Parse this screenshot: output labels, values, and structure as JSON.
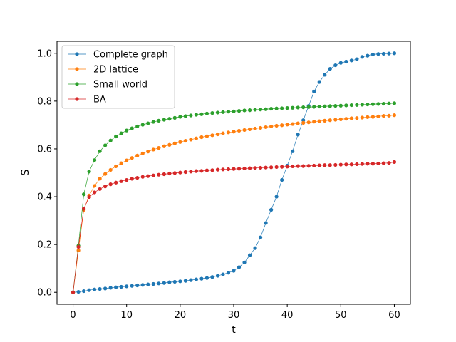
{
  "chart_data": {
    "type": "line",
    "xlabel": "t",
    "ylabel": "S",
    "xlim": [
      -3,
      63
    ],
    "ylim": [
      -0.05,
      1.05
    ],
    "xticks": [
      0,
      10,
      20,
      30,
      40,
      50,
      60
    ],
    "yticks": [
      0.0,
      0.2,
      0.4,
      0.6,
      0.8,
      1.0
    ],
    "ytick_labels": [
      "0.0",
      "0.2",
      "0.4",
      "0.6",
      "0.8",
      "1.0"
    ],
    "grid": false,
    "legend_position": "top-left",
    "series": [
      {
        "name": "Complete graph",
        "color": "#1f77b4",
        "x": [
          0,
          1,
          2,
          3,
          4,
          5,
          6,
          7,
          8,
          9,
          10,
          11,
          12,
          13,
          14,
          15,
          16,
          17,
          18,
          19,
          20,
          21,
          22,
          23,
          24,
          25,
          26,
          27,
          28,
          29,
          30,
          31,
          32,
          33,
          34,
          35,
          36,
          37,
          38,
          39,
          40,
          41,
          42,
          43,
          44,
          45,
          46,
          47,
          48,
          49,
          50,
          51,
          52,
          53,
          54,
          55,
          56,
          57,
          58,
          59,
          60
        ],
        "y": [
          0.0,
          0.002,
          0.005,
          0.009,
          0.012,
          0.014,
          0.016,
          0.019,
          0.021,
          0.023,
          0.025,
          0.027,
          0.029,
          0.031,
          0.033,
          0.035,
          0.037,
          0.039,
          0.042,
          0.044,
          0.046,
          0.048,
          0.051,
          0.054,
          0.057,
          0.06,
          0.064,
          0.069,
          0.075,
          0.082,
          0.09,
          0.105,
          0.125,
          0.155,
          0.185,
          0.23,
          0.29,
          0.345,
          0.4,
          0.47,
          0.53,
          0.59,
          0.66,
          0.72,
          0.78,
          0.84,
          0.88,
          0.91,
          0.935,
          0.95,
          0.96,
          0.965,
          0.97,
          0.975,
          0.985,
          0.99,
          0.995,
          0.997,
          0.998,
          0.999,
          1.0
        ]
      },
      {
        "name": "2D lattice",
        "color": "#ff7f0e",
        "x": [
          0,
          1,
          2,
          3,
          4,
          5,
          6,
          7,
          8,
          9,
          10,
          11,
          12,
          13,
          14,
          15,
          16,
          17,
          18,
          19,
          20,
          21,
          22,
          23,
          24,
          25,
          26,
          27,
          28,
          29,
          30,
          31,
          32,
          33,
          34,
          35,
          36,
          37,
          38,
          39,
          40,
          41,
          42,
          43,
          44,
          45,
          46,
          47,
          48,
          49,
          50,
          51,
          52,
          53,
          54,
          55,
          56,
          57,
          58,
          59,
          60
        ],
        "y": [
          0.0,
          0.175,
          0.345,
          0.405,
          0.445,
          0.475,
          0.495,
          0.512,
          0.527,
          0.54,
          0.552,
          0.562,
          0.572,
          0.581,
          0.589,
          0.597,
          0.604,
          0.611,
          0.617,
          0.623,
          0.629,
          0.634,
          0.639,
          0.644,
          0.649,
          0.653,
          0.657,
          0.661,
          0.665,
          0.669,
          0.672,
          0.676,
          0.679,
          0.682,
          0.685,
          0.688,
          0.691,
          0.694,
          0.697,
          0.699,
          0.702,
          0.704,
          0.707,
          0.709,
          0.711,
          0.714,
          0.716,
          0.718,
          0.72,
          0.722,
          0.724,
          0.726,
          0.728,
          0.729,
          0.731,
          0.733,
          0.734,
          0.736,
          0.738,
          0.739,
          0.741
        ]
      },
      {
        "name": "Small world",
        "color": "#2ca02c",
        "x": [
          0,
          1,
          2,
          3,
          4,
          5,
          6,
          7,
          8,
          9,
          10,
          11,
          12,
          13,
          14,
          15,
          16,
          17,
          18,
          19,
          20,
          21,
          22,
          23,
          24,
          25,
          26,
          27,
          28,
          29,
          30,
          31,
          32,
          33,
          34,
          35,
          36,
          37,
          38,
          39,
          40,
          41,
          42,
          43,
          44,
          45,
          46,
          47,
          48,
          49,
          50,
          51,
          52,
          53,
          54,
          55,
          56,
          57,
          58,
          59,
          60
        ],
        "y": [
          0.0,
          0.195,
          0.41,
          0.505,
          0.553,
          0.59,
          0.615,
          0.635,
          0.652,
          0.665,
          0.677,
          0.686,
          0.694,
          0.701,
          0.707,
          0.713,
          0.718,
          0.722,
          0.726,
          0.73,
          0.734,
          0.737,
          0.74,
          0.743,
          0.745,
          0.748,
          0.75,
          0.752,
          0.754,
          0.756,
          0.757,
          0.759,
          0.761,
          0.762,
          0.764,
          0.765,
          0.766,
          0.768,
          0.769,
          0.77,
          0.771,
          0.772,
          0.773,
          0.774,
          0.775,
          0.776,
          0.777,
          0.778,
          0.779,
          0.78,
          0.781,
          0.782,
          0.783,
          0.784,
          0.785,
          0.786,
          0.787,
          0.788,
          0.789,
          0.79,
          0.791
        ]
      },
      {
        "name": "BA",
        "color": "#d62728",
        "x": [
          0,
          1,
          2,
          3,
          4,
          5,
          6,
          7,
          8,
          9,
          10,
          11,
          12,
          13,
          14,
          15,
          16,
          17,
          18,
          19,
          20,
          21,
          22,
          23,
          24,
          25,
          26,
          27,
          28,
          29,
          30,
          31,
          32,
          33,
          34,
          35,
          36,
          37,
          38,
          39,
          40,
          41,
          42,
          43,
          44,
          45,
          46,
          47,
          48,
          49,
          50,
          51,
          52,
          53,
          54,
          55,
          56,
          57,
          58,
          59,
          60
        ],
        "y": [
          0.0,
          0.19,
          0.35,
          0.398,
          0.418,
          0.432,
          0.443,
          0.452,
          0.459,
          0.465,
          0.47,
          0.475,
          0.479,
          0.483,
          0.486,
          0.489,
          0.492,
          0.494,
          0.497,
          0.499,
          0.501,
          0.503,
          0.505,
          0.507,
          0.508,
          0.51,
          0.511,
          0.513,
          0.514,
          0.515,
          0.516,
          0.517,
          0.518,
          0.519,
          0.52,
          0.521,
          0.522,
          0.523,
          0.524,
          0.525,
          0.526,
          0.527,
          0.528,
          0.528,
          0.529,
          0.53,
          0.531,
          0.532,
          0.532,
          0.533,
          0.534,
          0.535,
          0.535,
          0.536,
          0.537,
          0.538,
          0.538,
          0.539,
          0.54,
          0.541,
          0.545
        ]
      }
    ]
  }
}
